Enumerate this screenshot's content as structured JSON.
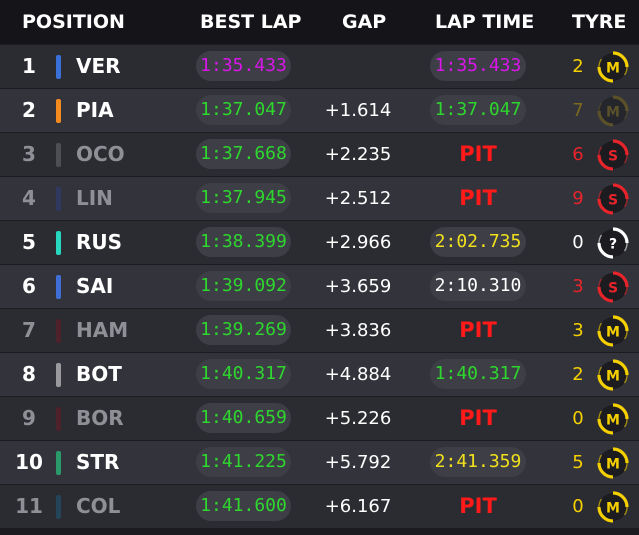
{
  "header": {
    "position": "POSITION",
    "best_lap": "BEST LAP",
    "gap": "GAP",
    "lap_time": "LAP TIME",
    "tyre": "TYRE"
  },
  "colors": {
    "purple": "#d916e8",
    "green": "#2ed62e",
    "yellow": "#f0e01c",
    "white": "#ffffff",
    "pit": "#ff1a1a",
    "medium": "#f5d000",
    "soft": "#e8242b",
    "inter": "#ffffff"
  },
  "rows": [
    {
      "pos": "1",
      "driver": "VER",
      "team_color": "#3a71d8",
      "best": "1:35.433",
      "best_color": "#d916e8",
      "gap": "",
      "lap": "1:35.433",
      "lap_color": "#d916e8",
      "stint": "2",
      "stint_color": "#f5d000",
      "tyre": "M",
      "tyre_color": "#f5d000",
      "tyre_icon": "medium-tyre-icon",
      "dim": false,
      "tyre_dim": false
    },
    {
      "pos": "2",
      "driver": "PIA",
      "team_color": "#f58a1f",
      "best": "1:37.047",
      "best_color": "#2ed62e",
      "gap": "+1.614",
      "lap": "1:37.047",
      "lap_color": "#2ed62e",
      "stint": "7",
      "stint_color": "#7a6a1c",
      "tyre": "M",
      "tyre_color": "#7a6a1c",
      "tyre_icon": "medium-tyre-icon",
      "dim": false,
      "tyre_dim": true
    },
    {
      "pos": "3",
      "driver": "OCO",
      "team_color": "#6c6c73",
      "best": "1:37.668",
      "best_color": "#2ed62e",
      "gap": "+2.235",
      "lap": "PIT",
      "lap_color": "#ff1a1a",
      "stint": "6",
      "stint_color": "#e8242b",
      "tyre": "S",
      "tyre_color": "#e8242b",
      "tyre_icon": "soft-tyre-icon",
      "dim": true,
      "tyre_dim": false
    },
    {
      "pos": "4",
      "driver": "LIN",
      "team_color": "#2c3e80",
      "best": "1:37.945",
      "best_color": "#2ed62e",
      "gap": "+2.512",
      "lap": "PIT",
      "lap_color": "#ff1a1a",
      "stint": "9",
      "stint_color": "#e8242b",
      "tyre": "S",
      "tyre_color": "#e8242b",
      "tyre_icon": "soft-tyre-icon",
      "dim": true,
      "tyre_dim": false
    },
    {
      "pos": "5",
      "driver": "RUS",
      "team_color": "#27d7c0",
      "best": "1:38.399",
      "best_color": "#2ed62e",
      "gap": "+2.966",
      "lap": "2:02.735",
      "lap_color": "#f0e01c",
      "stint": "0",
      "stint_color": "#ffffff",
      "tyre": "?",
      "tyre_color": "#ffffff",
      "tyre_icon": "unknown-tyre-icon",
      "dim": false,
      "tyre_dim": false
    },
    {
      "pos": "6",
      "driver": "SAI",
      "team_color": "#3f6fd6",
      "best": "1:39.092",
      "best_color": "#2ed62e",
      "gap": "+3.659",
      "lap": "2:10.310",
      "lap_color": "#ffffff",
      "stint": "3",
      "stint_color": "#e8242b",
      "tyre": "S",
      "tyre_color": "#e8242b",
      "tyre_icon": "soft-tyre-icon",
      "dim": false,
      "tyre_dim": false
    },
    {
      "pos": "7",
      "driver": "HAM",
      "team_color": "#6a1b24",
      "best": "1:39.269",
      "best_color": "#2ed62e",
      "gap": "+3.836",
      "lap": "PIT",
      "lap_color": "#ff1a1a",
      "stint": "3",
      "stint_color": "#f5d000",
      "tyre": "M",
      "tyre_color": "#f5d000",
      "tyre_icon": "medium-tyre-icon",
      "dim": true,
      "tyre_dim": false
    },
    {
      "pos": "8",
      "driver": "BOT",
      "team_color": "#9a9a9e",
      "best": "1:40.317",
      "best_color": "#2ed62e",
      "gap": "+4.884",
      "lap": "1:40.317",
      "lap_color": "#2ed62e",
      "stint": "2",
      "stint_color": "#f5d000",
      "tyre": "M",
      "tyre_color": "#f5d000",
      "tyre_icon": "medium-tyre-icon",
      "dim": false,
      "tyre_dim": false
    },
    {
      "pos": "9",
      "driver": "BOR",
      "team_color": "#6a1b24",
      "best": "1:40.659",
      "best_color": "#2ed62e",
      "gap": "+5.226",
      "lap": "PIT",
      "lap_color": "#ff1a1a",
      "stint": "0",
      "stint_color": "#f5d000",
      "tyre": "M",
      "tyre_color": "#f5d000",
      "tyre_icon": "medium-tyre-icon",
      "dim": true,
      "tyre_dim": false
    },
    {
      "pos": "10",
      "driver": "STR",
      "team_color": "#2a9a6a",
      "best": "1:41.225",
      "best_color": "#2ed62e",
      "gap": "+5.792",
      "lap": "2:41.359",
      "lap_color": "#f0e01c",
      "stint": "5",
      "stint_color": "#f5d000",
      "tyre": "M",
      "tyre_color": "#f5d000",
      "tyre_icon": "medium-tyre-icon",
      "dim": false,
      "tyre_dim": false
    },
    {
      "pos": "11",
      "driver": "COL",
      "team_color": "#1f5a7a",
      "best": "1:41.600",
      "best_color": "#2ed62e",
      "gap": "+6.167",
      "lap": "PIT",
      "lap_color": "#ff1a1a",
      "stint": "0",
      "stint_color": "#f5d000",
      "tyre": "M",
      "tyre_color": "#f5d000",
      "tyre_icon": "medium-tyre-icon",
      "dim": true,
      "tyre_dim": false
    }
  ]
}
